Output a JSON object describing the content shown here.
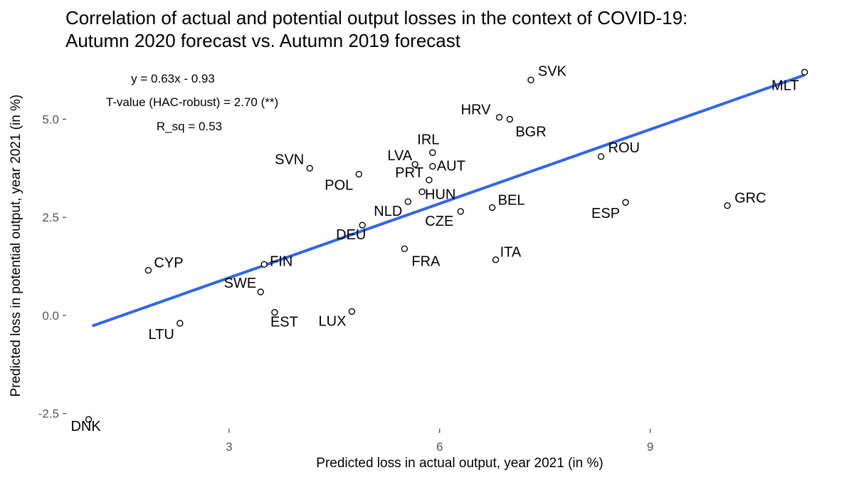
{
  "chart_data": {
    "type": "scatter",
    "title_lines": [
      "Correlation of actual and potential output losses in the context of COVID-19:",
      "Autumn 2020 forecast vs. Autumn 2019 forecast"
    ],
    "xlabel": "Predicted loss in actual output, year 2021 (in %)",
    "ylabel": "Predicted loss in potential output, year 2021 (in %)",
    "xlim": [
      0.7,
      11.6
    ],
    "ylim": [
      -2.85,
      6.55
    ],
    "x_ticks": [
      3,
      6,
      9
    ],
    "x_tick_labels": [
      "3",
      "6",
      "9"
    ],
    "y_ticks": [
      -2.5,
      0.0,
      2.5,
      5.0
    ],
    "y_tick_labels": [
      "-2.5",
      "0.0",
      "2.5",
      "5.0"
    ],
    "annotations": [
      "y = 0.63x - 0.93",
      "T-value (HAC-robust) = 2.70 (**)",
      "R_sq = 0.53"
    ],
    "fit_line": {
      "slope": 0.63,
      "intercept": -0.93,
      "x_range": [
        1.05,
        11.2
      ],
      "color": "#3366e6"
    },
    "points": [
      {
        "label": "SVK",
        "x": 7.3,
        "y": 6.0
      },
      {
        "label": "MLT",
        "x": 11.2,
        "y": 6.2
      },
      {
        "label": "HRV",
        "x": 6.85,
        "y": 5.05
      },
      {
        "label": "BGR",
        "x": 7.0,
        "y": 5.0
      },
      {
        "label": "ROU",
        "x": 8.3,
        "y": 4.05
      },
      {
        "label": "IRL",
        "x": 5.9,
        "y": 4.15
      },
      {
        "label": "LVA",
        "x": 5.65,
        "y": 3.85
      },
      {
        "label": "AUT",
        "x": 5.9,
        "y": 3.8
      },
      {
        "label": "SVN",
        "x": 4.15,
        "y": 3.75
      },
      {
        "label": "POL",
        "x": 4.85,
        "y": 3.6
      },
      {
        "label": "PRT",
        "x": 5.85,
        "y": 3.45
      },
      {
        "label": "HUN",
        "x": 5.75,
        "y": 3.15
      },
      {
        "label": "GRC",
        "x": 10.1,
        "y": 2.8
      },
      {
        "label": "ESP",
        "x": 8.65,
        "y": 2.88
      },
      {
        "label": "BEL",
        "x": 6.75,
        "y": 2.75
      },
      {
        "label": "CZE",
        "x": 6.3,
        "y": 2.65
      },
      {
        "label": "NLD",
        "x": 5.55,
        "y": 2.9
      },
      {
        "label": "DEU",
        "x": 4.9,
        "y": 2.3
      },
      {
        "label": "FRA",
        "x": 5.5,
        "y": 1.7
      },
      {
        "label": "ITA",
        "x": 6.8,
        "y": 1.42
      },
      {
        "label": "FIN",
        "x": 3.5,
        "y": 1.3
      },
      {
        "label": "CYP",
        "x": 1.85,
        "y": 1.15
      },
      {
        "label": "SWE",
        "x": 3.45,
        "y": 0.6
      },
      {
        "label": "EST",
        "x": 3.65,
        "y": 0.08
      },
      {
        "label": "LUX",
        "x": 4.75,
        "y": 0.1
      },
      {
        "label": "LTU",
        "x": 2.3,
        "y": -0.2
      },
      {
        "label": "DNK",
        "x": 1.0,
        "y": -2.65
      }
    ]
  }
}
